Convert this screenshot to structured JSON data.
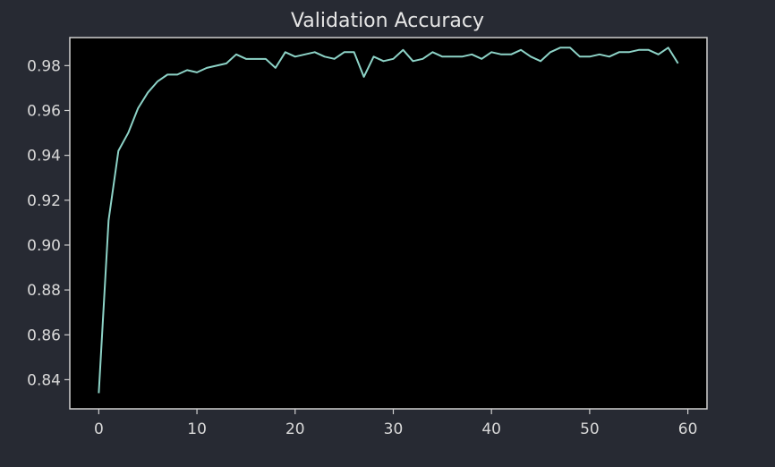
{
  "chart_data": {
    "type": "line",
    "title": "Validation Accuracy",
    "xlabel": "",
    "ylabel": "",
    "xlim": [
      -2.95,
      61.95
    ],
    "ylim": [
      0.827,
      0.9925
    ],
    "xticks": [
      0,
      10,
      20,
      30,
      40,
      50,
      60
    ],
    "yticks": [
      0.84,
      0.86,
      0.88,
      0.9,
      0.92,
      0.94,
      0.96,
      0.98
    ],
    "ytick_labels": [
      "0.84",
      "0.86",
      "0.88",
      "0.90",
      "0.92",
      "0.94",
      "0.96",
      "0.98"
    ],
    "xtick_labels": [
      "0",
      "10",
      "20",
      "30",
      "40",
      "50",
      "60"
    ],
    "grid": false,
    "legend": "none",
    "series": [
      {
        "color": "#8dd3c7",
        "x": [
          0,
          1,
          2,
          3,
          4,
          5,
          6,
          7,
          8,
          9,
          10,
          11,
          12,
          13,
          14,
          15,
          16,
          17,
          18,
          19,
          20,
          21,
          22,
          23,
          24,
          25,
          26,
          27,
          28,
          29,
          30,
          31,
          32,
          33,
          34,
          35,
          36,
          37,
          38,
          39,
          40,
          41,
          42,
          43,
          44,
          45,
          46,
          47,
          48,
          49,
          50,
          51,
          52,
          53,
          54,
          55,
          56,
          57,
          58,
          59
        ],
        "values": [
          0.834,
          0.911,
          0.942,
          0.95,
          0.961,
          0.968,
          0.973,
          0.976,
          0.976,
          0.978,
          0.977,
          0.979,
          0.98,
          0.981,
          0.985,
          0.983,
          0.983,
          0.983,
          0.979,
          0.986,
          0.984,
          0.985,
          0.986,
          0.984,
          0.983,
          0.986,
          0.986,
          0.975,
          0.984,
          0.982,
          0.983,
          0.987,
          0.982,
          0.983,
          0.986,
          0.984,
          0.984,
          0.984,
          0.985,
          0.983,
          0.986,
          0.985,
          0.985,
          0.987,
          0.984,
          0.982,
          0.986,
          0.988,
          0.988,
          0.984,
          0.984,
          0.985,
          0.984,
          0.986,
          0.986,
          0.987,
          0.987,
          0.985,
          0.988,
          0.981
        ]
      }
    ]
  },
  "colors": {
    "figure_background": "#272a33",
    "axes_background": "#000000",
    "spine": "#d0d0d0",
    "text": "#e6e6e6",
    "tick_label": "#d8d8d8"
  }
}
